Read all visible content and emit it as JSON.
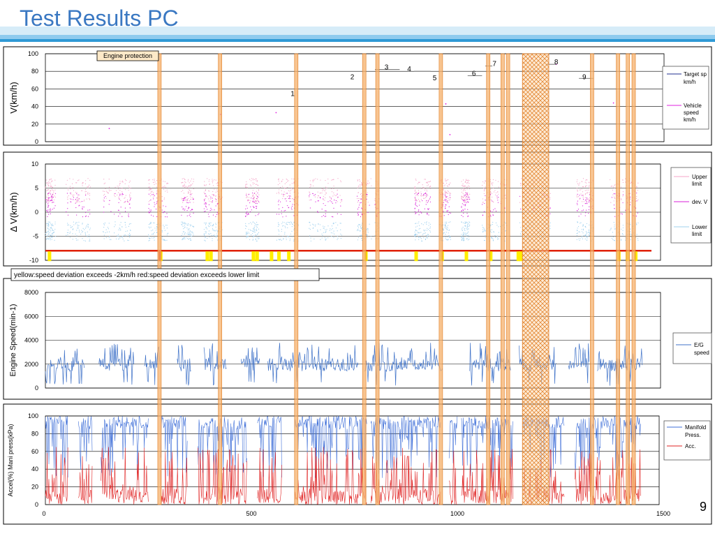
{
  "header": {
    "title": "Test Results PC"
  },
  "page_number": "9",
  "colors": {
    "accent": "#3a78c2",
    "event_band": "#f5b06b",
    "event_band_border": "#e07a1f",
    "target": "#1f2f8f",
    "vehicle": "#e020e0",
    "upper": "#f4a6c8",
    "dev": "#d81fd8",
    "lower": "#9fd0ee",
    "engine": "#3f72c8",
    "manifold": "#3f6fd8",
    "acc": "#e02020",
    "yellow": "#ffee00",
    "red": "#e02000"
  },
  "chart_data": [
    {
      "type": "scatter",
      "id": "speed",
      "ylabel": "V(km/h)",
      "yticks": [
        "0",
        "20",
        "40",
        "60",
        "80",
        "100"
      ],
      "ylim": [
        0,
        100
      ],
      "xlim": [
        0,
        1500
      ],
      "legend": [
        "Target sp km/h",
        "Vehicle speed km/h"
      ],
      "annotation": "Engine protection",
      "event_labels": [
        {
          "label": "1",
          "x": 600,
          "y": 52
        },
        {
          "label": "2",
          "x": 745,
          "y": 71
        },
        {
          "label": "3",
          "x": 828,
          "y": 82
        },
        {
          "label": "4",
          "x": 883,
          "y": 80
        },
        {
          "label": "5",
          "x": 945,
          "y": 70
        },
        {
          "label": "6",
          "x": 1040,
          "y": 75
        },
        {
          "label": "7",
          "x": 1090,
          "y": 86
        },
        {
          "label": "8",
          "x": 1240,
          "y": 88
        },
        {
          "label": "9",
          "x": 1308,
          "y": 71
        }
      ]
    },
    {
      "type": "scatter",
      "id": "deviation",
      "ylabel": "Δ V(km/h)",
      "yticks": [
        "-10",
        "-5",
        "0",
        "5",
        "10"
      ],
      "ylim": [
        -10,
        10
      ],
      "xlim": [
        0,
        1500
      ],
      "legend": [
        "Upper limit",
        "dev. V",
        "Lower limit"
      ],
      "threshold": -8,
      "caption": "yellow:speed deviation exceeds -2km/h red:speed deviation exceeds lower limit"
    },
    {
      "type": "line",
      "id": "engine",
      "ylabel": "Engine Speed(min-1)",
      "yticks": [
        "0",
        "2000",
        "4000",
        "6000",
        "8000"
      ],
      "ylim": [
        0,
        8000
      ],
      "xlim": [
        0,
        1500
      ],
      "legend": [
        "E/G speed"
      ]
    },
    {
      "type": "line",
      "id": "accel",
      "ylabel": "Accel(%) Mani press(kPa)",
      "yticks": [
        "0",
        "20",
        "40",
        "60",
        "80",
        "100"
      ],
      "ylim": [
        0,
        100
      ],
      "xlim": [
        0,
        1500
      ],
      "xticks": [
        "0",
        "500",
        "1000",
        "1500"
      ],
      "legend": [
        "Manifold Press.",
        "Acc."
      ]
    }
  ],
  "event_bands_x": [
    277,
    424,
    609,
    774,
    806,
    960,
    1075,
    1110,
    1123,
    1327,
    1390,
    1414,
    1428
  ],
  "hatched_region_x": [
    1158,
    1222
  ],
  "yellow_markers_x": [
    10,
    280,
    393,
    402,
    505,
    514,
    549,
    567,
    591,
    778,
    900,
    963,
    1022,
    1081,
    1148,
    1154,
    1392,
    1413,
    1433
  ]
}
